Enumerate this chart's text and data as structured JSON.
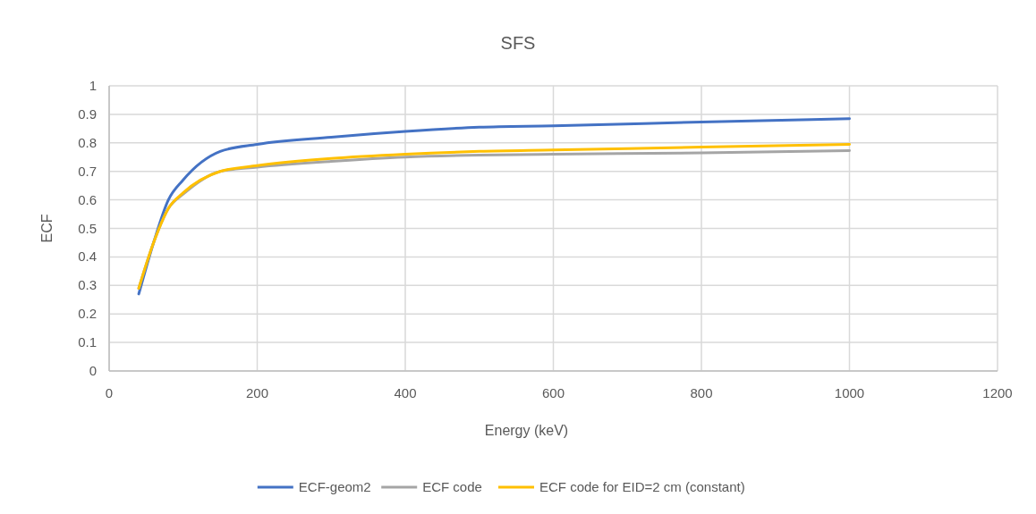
{
  "chart_data": {
    "type": "line",
    "title": "SFS",
    "xlabel": "Energy (keV)",
    "ylabel": "ECF",
    "xlim": [
      0,
      1200
    ],
    "xticks": [
      0,
      200,
      400,
      600,
      800,
      1000,
      1200
    ],
    "ylim": [
      0,
      1
    ],
    "yticks": [
      0,
      0.1,
      0.2,
      0.3,
      0.4,
      0.5,
      0.6,
      0.7,
      0.8,
      0.9,
      1
    ],
    "grid": true,
    "legend": "bottom",
    "line_style": "solid",
    "x": [
      40,
      60,
      80,
      100,
      150,
      200,
      300,
      400,
      500,
      600,
      800,
      1000
    ],
    "series": [
      {
        "name": "ECF-geom2",
        "color": "#4472c4",
        "values": [
          0.27,
          0.45,
          0.6,
          0.67,
          0.77,
          0.795,
          0.82,
          0.84,
          0.855,
          0.86,
          0.873,
          0.885
        ]
      },
      {
        "name": "ECF code",
        "color": "#a5a5a5",
        "values": [
          0.29,
          0.45,
          0.57,
          0.62,
          0.7,
          0.715,
          0.735,
          0.75,
          0.757,
          0.76,
          0.765,
          0.773
        ]
      },
      {
        "name": "ECF code for EID=2 cm (constant)",
        "color": "#ffc000",
        "values": [
          0.29,
          0.45,
          0.57,
          0.625,
          0.7,
          0.72,
          0.745,
          0.76,
          0.77,
          0.775,
          0.785,
          0.795
        ]
      }
    ]
  }
}
